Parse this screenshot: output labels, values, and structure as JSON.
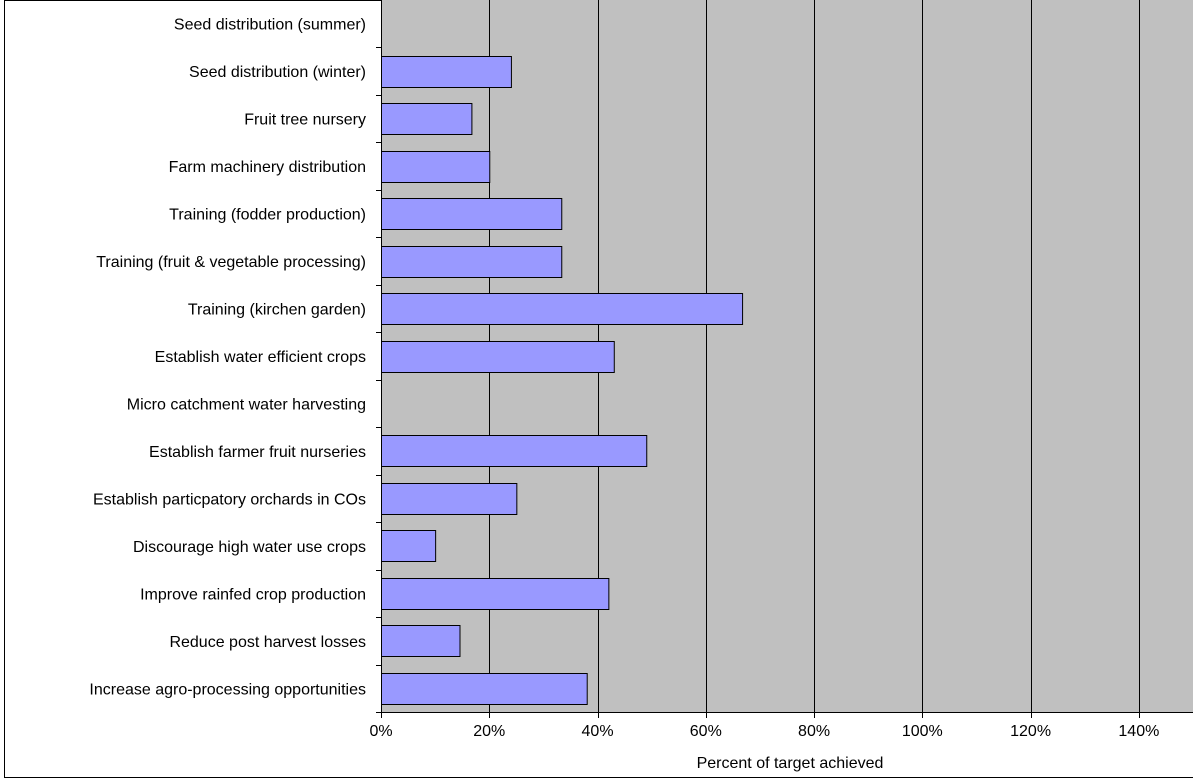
{
  "chart_data": {
    "type": "bar",
    "orientation": "horizontal",
    "categories": [
      "Seed distribution (summer)",
      "Seed distribution (winter)",
      "Fruit tree nursery",
      "Farm machinery distribution",
      "Training (fodder production)",
      "Training (fruit & vegetable processing)",
      "Training (kirchen garden)",
      "Establish water efficient crops",
      "Micro catchment water harvesting",
      "Establish farmer fruit nurseries",
      "Establish particpatory orchards in COs",
      "Discourage high water use crops",
      "Improve rainfed crop production",
      "Reduce post harvest losses",
      "Increase agro-processing opportunities"
    ],
    "values": [
      0,
      24,
      16.7,
      20,
      33.3,
      33.3,
      66.7,
      43,
      0,
      49,
      25,
      10,
      42,
      14.5,
      38
    ],
    "xlabel": "Percent of target achieved",
    "xlim": [
      0,
      150
    ],
    "xticks": [
      "0%",
      "20%",
      "40%",
      "60%",
      "80%",
      "100%",
      "120%",
      "140%"
    ],
    "xtick_values": [
      0,
      20,
      40,
      60,
      80,
      100,
      120,
      140
    ],
    "grid": "vertical",
    "colors": {
      "bar_fill": "#9999ff",
      "bar_stroke": "#000000",
      "plot_background": "#c0c0c0",
      "grid": "#000000"
    }
  }
}
